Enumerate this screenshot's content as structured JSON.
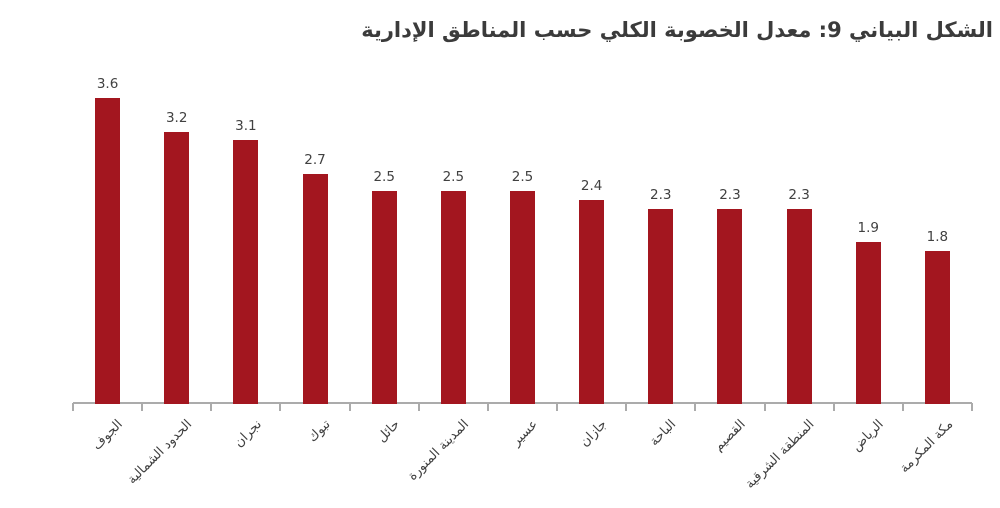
{
  "title": "الشكل البياني 9: معدل الخصوبة الكلي حسب المناطق الإدارية",
  "colors": {
    "bar": "#A3161F",
    "axis": "#ABABAB",
    "value_label": "#414141",
    "category_label": "#3F3F3F",
    "title_text": "#3B3B3B",
    "background": "#FFFFFF"
  },
  "chart_data": {
    "type": "bar",
    "title": "الشكل البياني 9: معدل الخصوبة الكلي حسب المناطق الإدارية",
    "categories": [
      "الجوف",
      "الحدود الشمالية",
      "نجران",
      "تبوك",
      "حائل",
      "المدينة المنورة",
      "عسير",
      "جازان",
      "الباحة",
      "القصيم",
      "المنطقة الشرقية",
      "الرياض",
      "مكة المكرمة"
    ],
    "values": [
      3.6,
      3.2,
      3.1,
      2.7,
      2.5,
      2.5,
      2.5,
      2.4,
      2.3,
      2.3,
      2.3,
      1.9,
      1.8
    ],
    "xlabel": "",
    "ylabel": "",
    "ylim": [
      0,
      3.6
    ],
    "grid": false,
    "legend": "none",
    "value_labels_shown": true,
    "x_tick_label_rotation_deg": 45
  }
}
